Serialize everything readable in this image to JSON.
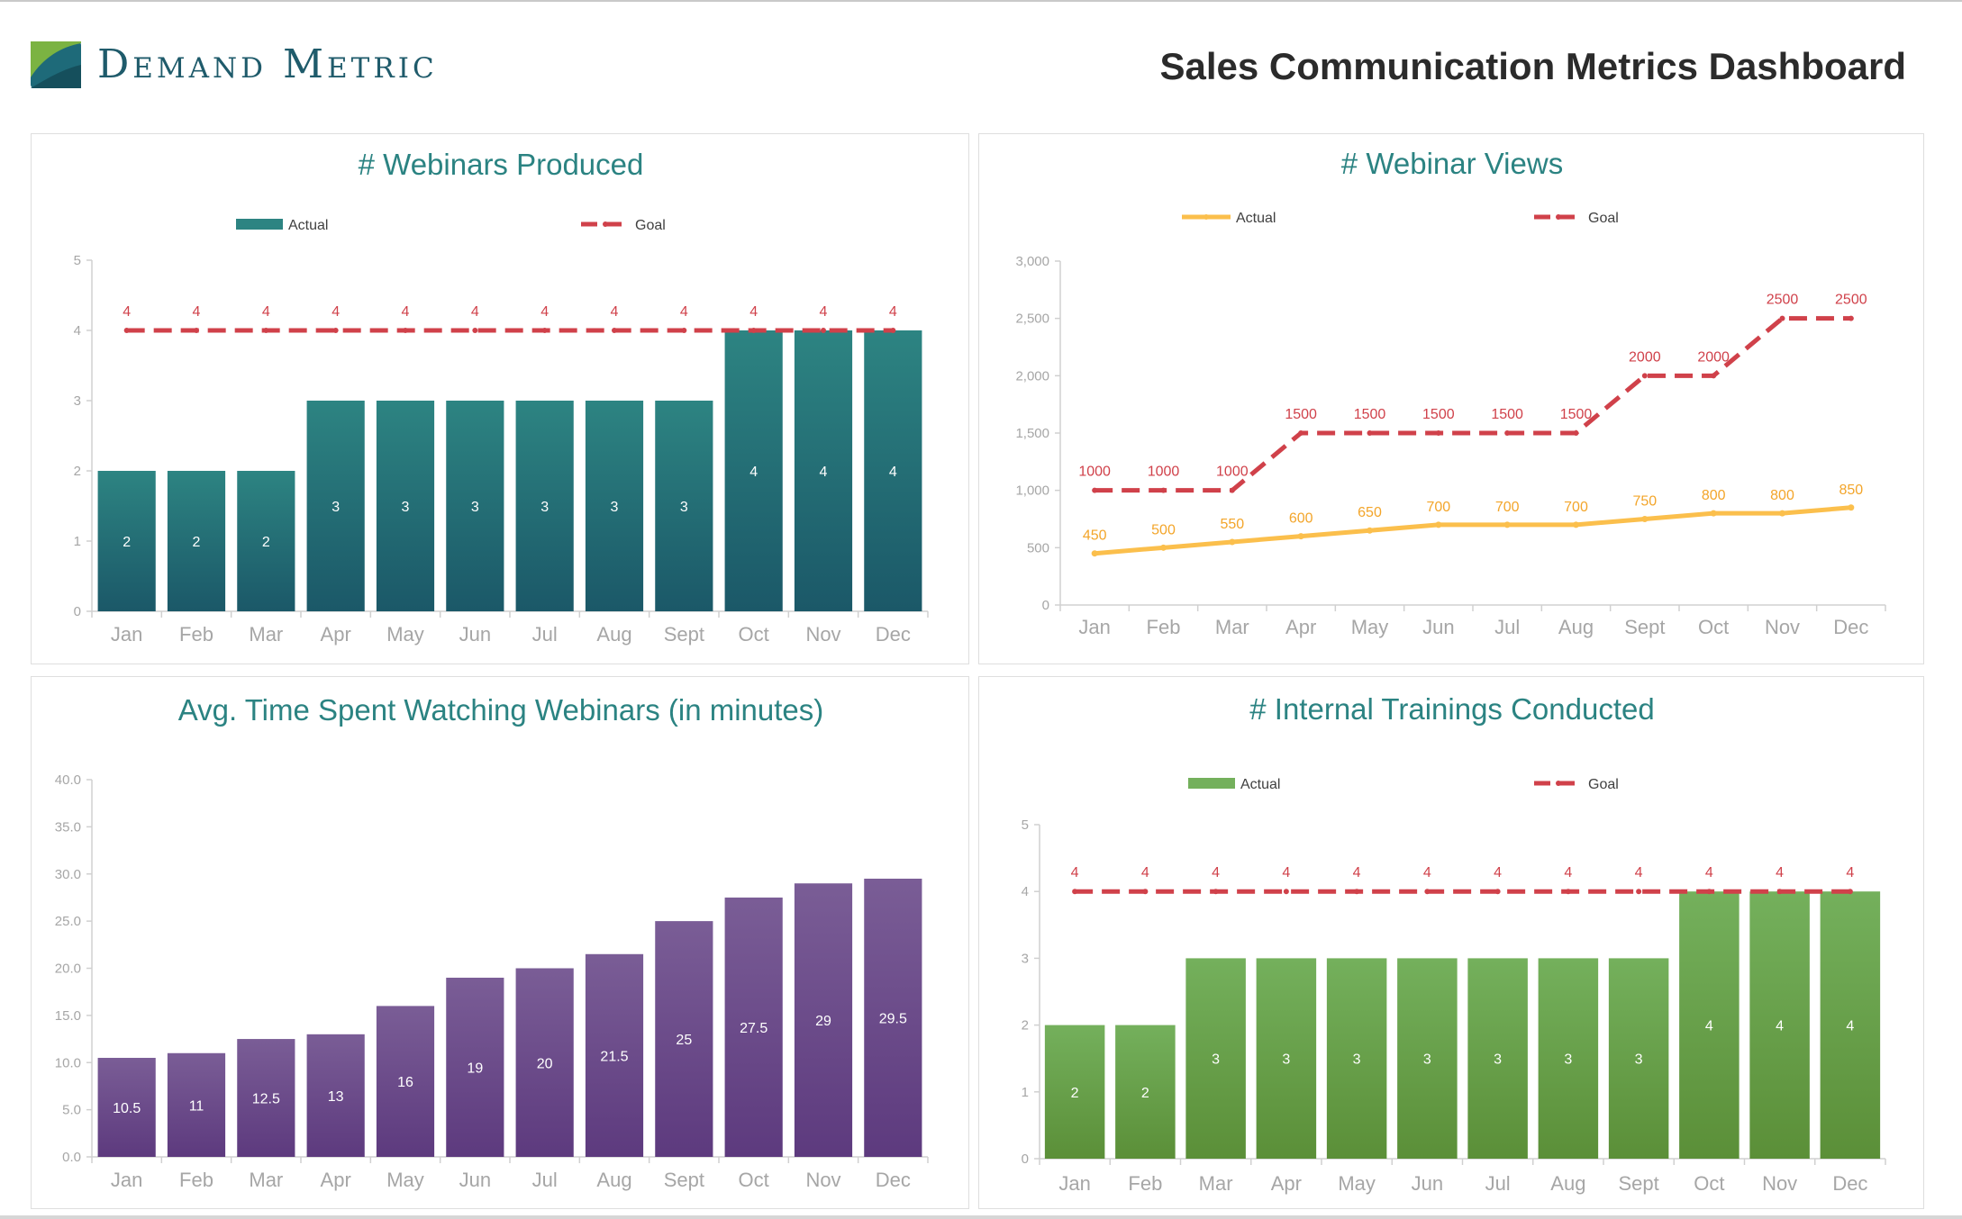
{
  "header": {
    "brand_name": "Demand Metric",
    "title": "Sales Communication Metrics Dashboard",
    "logo_icon": "demand-metric-logo-icon"
  },
  "colors": {
    "teal": "#2d8482",
    "teal_dark": "#1b5868",
    "purple_top": "#7a5d96",
    "purple_bottom": "#5d3a7e",
    "green_top": "#74b05c",
    "green_bottom": "#5b8f38",
    "orange": "#fbbf4c",
    "orange_label": "#f3a52a",
    "goal": "#d0414a",
    "title": "#2b8382",
    "axis_text": "#a6a6a6"
  },
  "chart_data": [
    {
      "id": "webinars-produced",
      "type": "bar",
      "title": "# Webinars Produced",
      "xlabel": "",
      "ylabel": "",
      "categories": [
        "Jan",
        "Feb",
        "Mar",
        "Apr",
        "May",
        "Jun",
        "Jul",
        "Aug",
        "Sept",
        "Oct",
        "Nov",
        "Dec"
      ],
      "ylim": [
        0,
        5
      ],
      "yticks": [
        "0",
        "1",
        "2",
        "3",
        "4",
        "5"
      ],
      "grid": false,
      "legend_position": "top",
      "series": [
        {
          "name": "Actual",
          "kind": "bar",
          "values": [
            2,
            2,
            2,
            3,
            3,
            3,
            3,
            3,
            3,
            4,
            4,
            4
          ],
          "labels": [
            "2",
            "2",
            "2",
            "3",
            "3",
            "3",
            "3",
            "3",
            "3",
            "4",
            "4",
            "4"
          ]
        },
        {
          "name": "Goal",
          "kind": "dashed-line",
          "values": [
            4,
            4,
            4,
            4,
            4,
            4,
            4,
            4,
            4,
            4,
            4,
            4
          ],
          "labels": [
            "4",
            "4",
            "4",
            "4",
            "4",
            "4",
            "4",
            "4",
            "4",
            "4",
            "4",
            "4"
          ]
        }
      ]
    },
    {
      "id": "webinar-views",
      "type": "line",
      "title": "# Webinar Views",
      "xlabel": "",
      "ylabel": "",
      "categories": [
        "Jan",
        "Feb",
        "Mar",
        "Apr",
        "May",
        "Jun",
        "Jul",
        "Aug",
        "Sept",
        "Oct",
        "Nov",
        "Dec"
      ],
      "ylim": [
        0,
        3000
      ],
      "yticks": [
        "0",
        "500",
        "1,000",
        "1,500",
        "2,000",
        "2,500",
        "3,000"
      ],
      "grid": false,
      "legend_position": "top",
      "series": [
        {
          "name": "Actual",
          "kind": "line",
          "values": [
            450,
            500,
            550,
            600,
            650,
            700,
            700,
            700,
            750,
            800,
            800,
            850
          ],
          "labels": [
            "450",
            "500",
            "550",
            "600",
            "650",
            "700",
            "700",
            "700",
            "750",
            "800",
            "800",
            "850"
          ]
        },
        {
          "name": "Goal",
          "kind": "dashed-line",
          "values": [
            1000,
            1000,
            1000,
            1500,
            1500,
            1500,
            1500,
            1500,
            2000,
            2000,
            2500,
            2500
          ],
          "labels": [
            "1000",
            "1000",
            "1000",
            "1500",
            "1500",
            "1500",
            "1500",
            "1500",
            "2000",
            "2000",
            "2500",
            "2500"
          ]
        }
      ]
    },
    {
      "id": "avg-time-watching",
      "type": "bar",
      "title": "Avg. Time Spent Watching Webinars (in minutes)",
      "xlabel": "",
      "ylabel": "",
      "categories": [
        "Jan",
        "Feb",
        "Mar",
        "Apr",
        "May",
        "Jun",
        "Jul",
        "Aug",
        "Sept",
        "Oct",
        "Nov",
        "Dec"
      ],
      "ylim": [
        0,
        40
      ],
      "yticks": [
        "0.0",
        "5.0",
        "10.0",
        "15.0",
        "20.0",
        "25.0",
        "30.0",
        "35.0",
        "40.0"
      ],
      "grid": false,
      "legend_position": "none",
      "series": [
        {
          "kind": "bar",
          "values": [
            10.5,
            11,
            12.5,
            13,
            16,
            19,
            20,
            21.5,
            25,
            27.5,
            29,
            29.5
          ],
          "labels": [
            "10.5",
            "11",
            "12.5",
            "13",
            "16",
            "19",
            "20",
            "21.5",
            "25",
            "27.5",
            "29",
            "29.5"
          ]
        }
      ]
    },
    {
      "id": "internal-trainings",
      "type": "bar",
      "title": "# Internal Trainings Conducted",
      "xlabel": "",
      "ylabel": "",
      "categories": [
        "Jan",
        "Feb",
        "Mar",
        "Apr",
        "May",
        "Jun",
        "Jul",
        "Aug",
        "Sept",
        "Oct",
        "Nov",
        "Dec"
      ],
      "ylim": [
        0,
        5
      ],
      "yticks": [
        "0",
        "1",
        "2",
        "3",
        "4",
        "5"
      ],
      "grid": false,
      "legend_position": "top",
      "series": [
        {
          "name": "Actual",
          "kind": "bar",
          "values": [
            2,
            2,
            3,
            3,
            3,
            3,
            3,
            3,
            3,
            4,
            4,
            4
          ],
          "labels": [
            "2",
            "2",
            "3",
            "3",
            "3",
            "3",
            "3",
            "3",
            "3",
            "4",
            "4",
            "4"
          ]
        },
        {
          "name": "Goal",
          "kind": "dashed-line",
          "values": [
            4,
            4,
            4,
            4,
            4,
            4,
            4,
            4,
            4,
            4,
            4,
            4
          ],
          "labels": [
            "4",
            "4",
            "4",
            "4",
            "4",
            "4",
            "4",
            "4",
            "4",
            "4",
            "4",
            "4"
          ]
        }
      ]
    }
  ]
}
